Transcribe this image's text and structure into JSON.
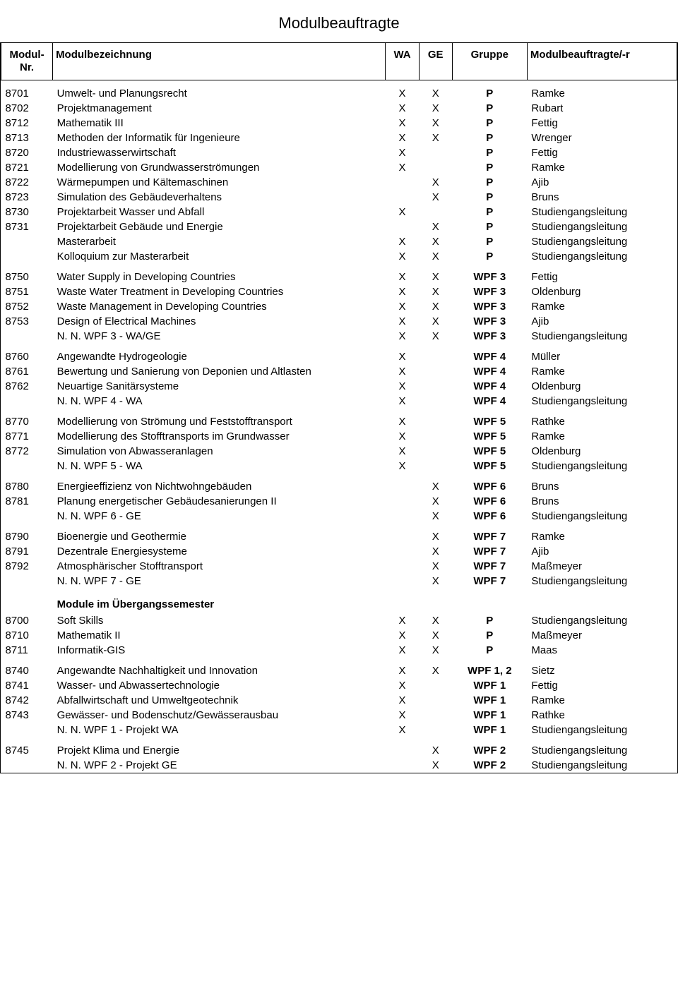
{
  "title": "Modulbeauftragte",
  "headers": {
    "nr": "Modul-\nNr.",
    "bez": "Modulbezeichnung",
    "wa": "WA",
    "ge": "GE",
    "gruppe": "Gruppe",
    "mb": "Modulbeauftragte/-r"
  },
  "groups": [
    {
      "rows": [
        {
          "nr": "8701",
          "bez": "Umwelt- und Planungsrecht",
          "wa": "X",
          "ge": "X",
          "gr": "P",
          "mb": "Ramke"
        },
        {
          "nr": "8702",
          "bez": "Projektmanagement",
          "wa": "X",
          "ge": "X",
          "gr": "P",
          "mb": "Rubart"
        },
        {
          "nr": "8712",
          "bez": "Mathematik III",
          "wa": "X",
          "ge": "X",
          "gr": "P",
          "mb": "Fettig"
        },
        {
          "nr": "8713",
          "bez": "Methoden der Informatik für Ingenieure",
          "wa": "X",
          "ge": "X",
          "gr": "P",
          "mb": "Wrenger"
        },
        {
          "nr": "8720",
          "bez": "Industriewasserwirtschaft",
          "wa": "X",
          "ge": "",
          "gr": "P",
          "mb": "Fettig"
        },
        {
          "nr": "8721",
          "bez": "Modellierung von Grundwasserströmungen",
          "wa": "X",
          "ge": "",
          "gr": "P",
          "mb": "Ramke"
        },
        {
          "nr": "8722",
          "bez": "Wärmepumpen und Kältemaschinen",
          "wa": "",
          "ge": "X",
          "gr": "P",
          "mb": "Ajib"
        },
        {
          "nr": "8723",
          "bez": "Simulation des Gebäudeverhaltens",
          "wa": "",
          "ge": "X",
          "gr": "P",
          "mb": "Bruns"
        },
        {
          "nr": "8730",
          "bez": "Projektarbeit Wasser und Abfall",
          "wa": "X",
          "ge": "",
          "gr": "P",
          "mb": "Studiengangsleitung"
        },
        {
          "nr": "8731",
          "bez": "Projektarbeit Gebäude und Energie",
          "wa": "",
          "ge": "X",
          "gr": "P",
          "mb": "Studiengangsleitung"
        },
        {
          "nr": "",
          "bez": "Masterarbeit",
          "wa": "X",
          "ge": "X",
          "gr": "P",
          "mb": "Studiengangsleitung"
        },
        {
          "nr": "",
          "bez": "Kolloquium zur Masterarbeit",
          "wa": "X",
          "ge": "X",
          "gr": "P",
          "mb": "Studiengangsleitung"
        }
      ]
    },
    {
      "rows": [
        {
          "nr": "8750",
          "bez": "Water Supply in Developing Countries",
          "wa": "X",
          "ge": "X",
          "gr": "WPF 3",
          "mb": "Fettig"
        },
        {
          "nr": "8751",
          "bez": "Waste Water Treatment in Developing Countries",
          "wa": "X",
          "ge": "X",
          "gr": "WPF 3",
          "mb": "Oldenburg"
        },
        {
          "nr": "8752",
          "bez": "Waste Management in Developing Countries",
          "wa": "X",
          "ge": "X",
          "gr": "WPF 3",
          "mb": "Ramke"
        },
        {
          "nr": "8753",
          "bez": "Design of Electrical Machines",
          "wa": "X",
          "ge": "X",
          "gr": "WPF 3",
          "mb": "Ajib"
        },
        {
          "nr": "",
          "bez": "N. N. WPF 3 - WA/GE",
          "wa": "X",
          "ge": "X",
          "gr": "WPF 3",
          "mb": "Studiengangsleitung"
        }
      ]
    },
    {
      "rows": [
        {
          "nr": "8760",
          "bez": "Angewandte Hydrogeologie",
          "wa": "X",
          "ge": "",
          "gr": "WPF 4",
          "mb": "Müller"
        },
        {
          "nr": "8761",
          "bez": "Bewertung und Sanierung von Deponien und Altlasten",
          "wa": "X",
          "ge": "",
          "gr": "WPF 4",
          "mb": "Ramke"
        },
        {
          "nr": "8762",
          "bez": "Neuartige Sanitärsysteme",
          "wa": "X",
          "ge": "",
          "gr": "WPF 4",
          "mb": "Oldenburg"
        },
        {
          "nr": "",
          "bez": "N. N. WPF 4 - WA",
          "wa": "X",
          "ge": "",
          "gr": "WPF 4",
          "mb": "Studiengangsleitung"
        }
      ]
    },
    {
      "rows": [
        {
          "nr": "8770",
          "bez": "Modellierung von Strömung und Feststofftransport",
          "wa": "X",
          "ge": "",
          "gr": "WPF 5",
          "mb": "Rathke"
        },
        {
          "nr": "8771",
          "bez": "Modellierung des Stofftransports im Grundwasser",
          "wa": "X",
          "ge": "",
          "gr": "WPF 5",
          "mb": "Ramke"
        },
        {
          "nr": "8772",
          "bez": "Simulation von Abwasseranlagen",
          "wa": "X",
          "ge": "",
          "gr": "WPF 5",
          "mb": "Oldenburg"
        },
        {
          "nr": "",
          "bez": "N. N. WPF 5 - WA",
          "wa": "X",
          "ge": "",
          "gr": "WPF 5",
          "mb": "Studiengangsleitung"
        }
      ]
    },
    {
      "rows": [
        {
          "nr": "8780",
          "bez": "Energieeffizienz von Nichtwohngebäuden",
          "wa": "",
          "ge": "X",
          "gr": "WPF 6",
          "mb": "Bruns"
        },
        {
          "nr": "8781",
          "bez": "Planung energetischer Gebäudesanierungen II",
          "wa": "",
          "ge": "X",
          "gr": "WPF 6",
          "mb": "Bruns"
        },
        {
          "nr": "",
          "bez": "N. N. WPF 6 - GE",
          "wa": "",
          "ge": "X",
          "gr": "WPF 6",
          "mb": "Studiengangsleitung"
        }
      ]
    },
    {
      "rows": [
        {
          "nr": "8790",
          "bez": "Bioenergie und Geothermie",
          "wa": "",
          "ge": "X",
          "gr": "WPF 7",
          "mb": "Ramke"
        },
        {
          "nr": "8791",
          "bez": "Dezentrale Energiesysteme",
          "wa": "",
          "ge": "X",
          "gr": "WPF 7",
          "mb": "Ajib"
        },
        {
          "nr": "8792",
          "bez": "Atmosphärischer Stofftransport",
          "wa": "",
          "ge": "X",
          "gr": "WPF 7",
          "mb": "Maßmeyer"
        },
        {
          "nr": "",
          "bez": "N. N. WPF 7 - GE",
          "wa": "",
          "ge": "X",
          "gr": "WPF 7",
          "mb": "Studiengangsleitung"
        }
      ]
    },
    {
      "heading": "Module im Übergangssemester",
      "rows": [
        {
          "nr": "8700",
          "bez": "Soft Skills",
          "wa": "X",
          "ge": "X",
          "gr": "P",
          "mb": "Studiengangsleitung"
        },
        {
          "nr": "8710",
          "bez": "Mathematik II",
          "wa": "X",
          "ge": "X",
          "gr": "P",
          "mb": "Maßmeyer"
        },
        {
          "nr": "8711",
          "bez": "Informatik-GIS",
          "wa": "X",
          "ge": "X",
          "gr": "P",
          "mb": "Maas"
        }
      ]
    },
    {
      "rows": [
        {
          "nr": "8740",
          "bez": "Angewandte Nachhaltigkeit und Innovation",
          "wa": "X",
          "ge": "X",
          "gr": "WPF 1, 2",
          "mb": "Sietz"
        },
        {
          "nr": "8741",
          "bez": "Wasser- und Abwassertechnologie",
          "wa": "X",
          "ge": "",
          "gr": "WPF 1",
          "mb": "Fettig"
        },
        {
          "nr": "8742",
          "bez": "Abfallwirtschaft und Umweltgeotechnik",
          "wa": "X",
          "ge": "",
          "gr": "WPF 1",
          "mb": "Ramke"
        },
        {
          "nr": "8743",
          "bez": "Gewässer- und Bodenschutz/Gewässerausbau",
          "wa": "X",
          "ge": "",
          "gr": "WPF 1",
          "mb": "Rathke"
        },
        {
          "nr": "",
          "bez": "N. N. WPF 1 - Projekt WA",
          "wa": "X",
          "ge": "",
          "gr": "WPF 1",
          "mb": "Studiengangsleitung"
        }
      ]
    },
    {
      "rows": [
        {
          "nr": "8745",
          "bez": "Projekt Klima und Energie",
          "wa": "",
          "ge": "X",
          "gr": "WPF 2",
          "mb": "Studiengangsleitung"
        },
        {
          "nr": "",
          "bez": "N. N. WPF 2 - Projekt GE",
          "wa": "",
          "ge": "X",
          "gr": "WPF 2",
          "mb": "Studiengangsleitung"
        }
      ]
    }
  ]
}
